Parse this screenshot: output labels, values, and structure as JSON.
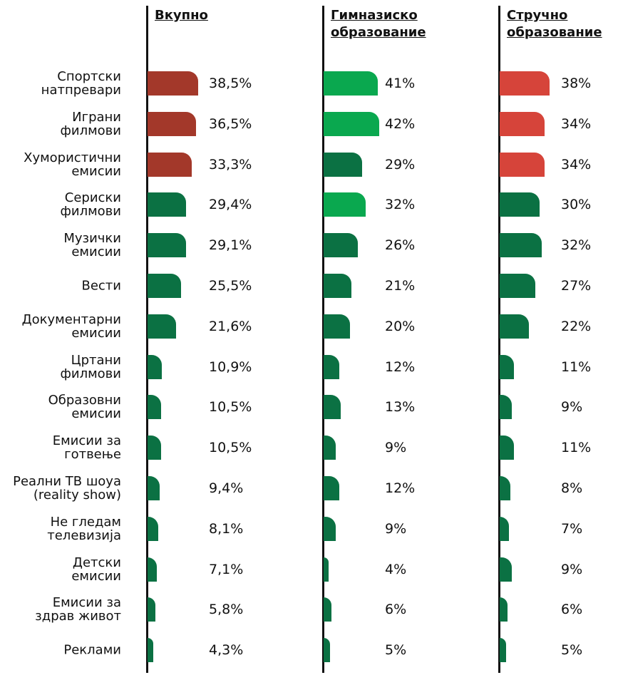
{
  "chart_data": {
    "type": "bar",
    "orientation": "horizontal",
    "categories": [
      "Спортски\nнатпревари",
      "Играни\nфилмови",
      "Хумористични\nемисии",
      "Сериски\nфилмови",
      "Музички\nемисии",
      "Вести",
      "Документарни\nемисии",
      "Цртани\nфилмови",
      "Образовни\nемисии",
      "Емисии за\nготвење",
      "Реални ТВ шоуа\n(reality show)",
      "Не гледам\nтелевизија",
      "Детски\nемисии",
      "Емисии за\nздрав живот",
      "Реклами"
    ],
    "series": [
      {
        "name": "Вкупно",
        "values": [
          38.5,
          36.5,
          33.3,
          29.4,
          29.1,
          25.5,
          21.6,
          10.9,
          10.5,
          10.5,
          9.4,
          8.1,
          7.1,
          5.8,
          4.3
        ],
        "value_labels": [
          "38,5%",
          "36,5%",
          "33,3%",
          "29,4%",
          "29,1%",
          "25,5%",
          "21,6%",
          "10,9%",
          "10,5%",
          "10,5%",
          "9,4%",
          "8,1%",
          "7,1%",
          "5,8%",
          "4,3%"
        ],
        "colors": [
          "#a3382a",
          "#a3382a",
          "#a3382a",
          "#0b7143",
          "#0b7143",
          "#0b7143",
          "#0b7143",
          "#0b7143",
          "#0b7143",
          "#0b7143",
          "#0b7143",
          "#0b7143",
          "#0b7143",
          "#0b7143",
          "#0b7143"
        ]
      },
      {
        "name": "Гимназиско\nобразование",
        "values": [
          41,
          42,
          29,
          32,
          26,
          21,
          20,
          12,
          13,
          9,
          12,
          9,
          4,
          6,
          5
        ],
        "value_labels": [
          "41%",
          "42%",
          "29%",
          "32%",
          "26%",
          "21%",
          "20%",
          "12%",
          "13%",
          "9%",
          "12%",
          "9%",
          "4%",
          "6%",
          "5%"
        ],
        "colors": [
          "#0aa84f",
          "#0aa84f",
          "#0b7143",
          "#0aa84f",
          "#0b7143",
          "#0b7143",
          "#0b7143",
          "#0b7143",
          "#0b7143",
          "#0b7143",
          "#0b7143",
          "#0b7143",
          "#0b7143",
          "#0b7143",
          "#0b7143"
        ]
      },
      {
        "name": "Стручно\nобразование",
        "values": [
          38,
          34,
          34,
          30,
          32,
          27,
          22,
          11,
          9,
          11,
          8,
          7,
          9,
          6,
          5
        ],
        "value_labels": [
          "38%",
          "34%",
          "34%",
          "30%",
          "32%",
          "27%",
          "22%",
          "11%",
          "9%",
          "11%",
          "8%",
          "7%",
          "9%",
          "6%",
          "5%"
        ],
        "colors": [
          "#d6443a",
          "#d6443a",
          "#d6443a",
          "#0b7143",
          "#0b7143",
          "#0b7143",
          "#0b7143",
          "#0b7143",
          "#0b7143",
          "#0b7143",
          "#0b7143",
          "#0b7143",
          "#0b7143",
          "#0b7143",
          "#0b7143"
        ]
      }
    ]
  }
}
